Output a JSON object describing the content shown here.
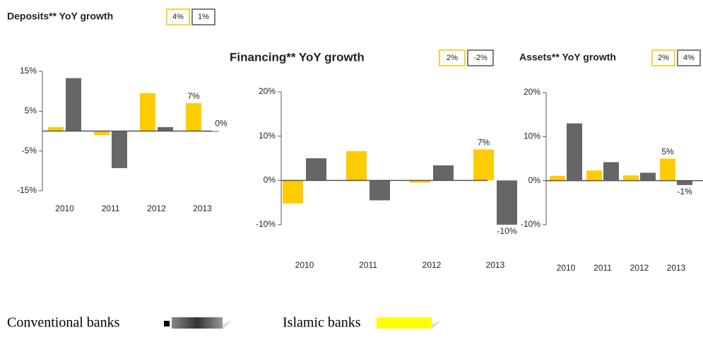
{
  "chart_data": [
    {
      "type": "bar",
      "title": "Deposits** YoY growth",
      "badges": [
        {
          "label": "4%",
          "color": "#f5c400"
        },
        {
          "label": "1%",
          "color": "#555555"
        }
      ],
      "categories": [
        "2010",
        "2011",
        "2012",
        "2013"
      ],
      "series": [
        {
          "color": "#ffcc00",
          "values": [
            1,
            -1,
            9.5,
            7
          ],
          "value_labels": [
            null,
            null,
            null,
            "7%"
          ]
        },
        {
          "color": "#666666",
          "values": [
            13.3,
            -9.3,
            1,
            0
          ],
          "value_labels": [
            null,
            null,
            null,
            "0%"
          ]
        }
      ],
      "ylim": [
        -15,
        15
      ],
      "yticks": [
        {
          "value": 15,
          "label": "15%"
        },
        {
          "value": 5,
          "label": "5%"
        },
        {
          "value": -5,
          "label": "-5%"
        },
        {
          "value": -15,
          "label": "-15%"
        }
      ]
    },
    {
      "type": "bar",
      "title": "Financing** YoY growth",
      "badges": [
        {
          "label": "2%",
          "color": "#f5c400"
        },
        {
          "label": "-2%",
          "color": "#555555"
        }
      ],
      "categories": [
        "2010",
        "2011",
        "2012",
        "2013"
      ],
      "series": [
        {
          "color": "#ffcc00",
          "values": [
            -5.2,
            6.6,
            -0.5,
            7
          ],
          "value_labels": [
            null,
            null,
            null,
            "7%"
          ]
        },
        {
          "color": "#666666",
          "values": [
            5,
            -4.5,
            3.4,
            -10
          ],
          "value_labels": [
            null,
            null,
            null,
            "-10%"
          ]
        }
      ],
      "ylim": [
        -10,
        20
      ],
      "yticks": [
        {
          "value": 20,
          "label": "20%"
        },
        {
          "value": 10,
          "label": "10%"
        },
        {
          "value": 0,
          "label": "0%"
        },
        {
          "value": -10,
          "label": "-10%"
        }
      ]
    },
    {
      "type": "bar",
      "title": "Assets** YoY growth",
      "badges": [
        {
          "label": "2%",
          "color": "#f5c400"
        },
        {
          "label": "4%",
          "color": "#555555"
        }
      ],
      "categories": [
        "2010",
        "2011",
        "2012",
        "2013"
      ],
      "series": [
        {
          "color": "#ffcc00",
          "values": [
            1.1,
            2.3,
            1.2,
            5
          ],
          "value_labels": [
            null,
            null,
            null,
            "5%"
          ]
        },
        {
          "color": "#666666",
          "values": [
            13,
            4.2,
            1.8,
            -1
          ],
          "value_labels": [
            null,
            null,
            null,
            "-1%"
          ]
        }
      ],
      "ylim": [
        -10,
        20
      ],
      "yticks": [
        {
          "value": 20,
          "label": "20%"
        },
        {
          "value": 10,
          "label": "10%"
        },
        {
          "value": 0,
          "label": "0%"
        },
        {
          "value": -10,
          "label": "-10%"
        }
      ]
    }
  ],
  "legend": {
    "items": [
      {
        "name": "Conventional banks",
        "color": "#666666"
      },
      {
        "name": "Islamic banks",
        "color": "#ffff00"
      }
    ]
  }
}
